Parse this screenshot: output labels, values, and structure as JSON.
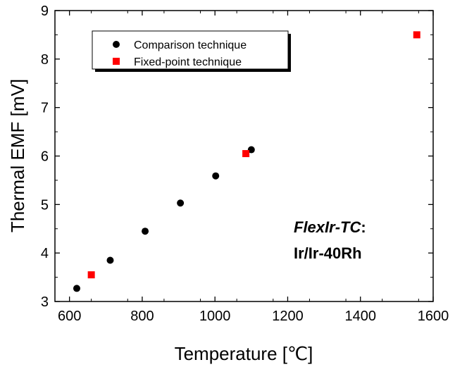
{
  "chart_data": {
    "type": "scatter",
    "xlabel": "Temperature [℃]",
    "ylabel": "Thermal EMF [mV]",
    "xlim": [
      560,
      1600
    ],
    "ylim": [
      3,
      9
    ],
    "xticks": [
      600,
      800,
      1000,
      1200,
      1400,
      1600
    ],
    "yticks": [
      3,
      4,
      5,
      6,
      7,
      8,
      9
    ],
    "xtick_labels": [
      "600",
      "800",
      "1000",
      "1200",
      "1400",
      "1600"
    ],
    "ytick_labels": [
      "3",
      "4",
      "5",
      "6",
      "7",
      "8",
      "9"
    ],
    "grid": false,
    "legend_position": "top-left",
    "series": [
      {
        "name": "Comparison technique",
        "marker": "circle",
        "color": "#000000",
        "points": [
          [
            620,
            3.27
          ],
          [
            712,
            3.85
          ],
          [
            808,
            4.45
          ],
          [
            905,
            5.03
          ],
          [
            1002,
            5.59
          ],
          [
            1100,
            6.13
          ]
        ]
      },
      {
        "name": "Fixed-point technique",
        "marker": "square",
        "color": "#ff0000",
        "points": [
          [
            660,
            3.55
          ],
          [
            1085,
            6.05
          ],
          [
            1555,
            8.5
          ]
        ]
      }
    ],
    "annotation": {
      "line1_italic": "FlexIr-TC",
      "line1_suffix": ":",
      "line2": "Ir/Ir-40Rh"
    }
  }
}
